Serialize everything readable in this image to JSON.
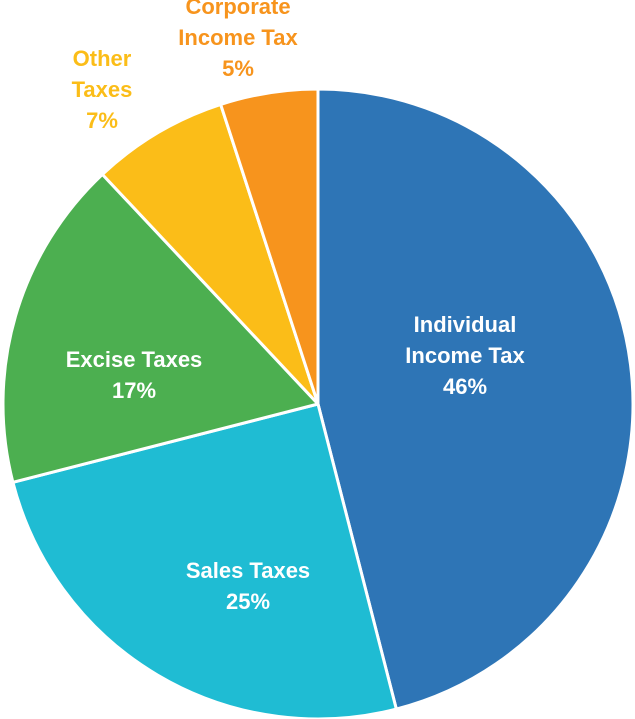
{
  "chart_data": {
    "type": "pie",
    "title": "",
    "slices": [
      {
        "name": "Individual Income Tax",
        "label_lines": [
          "Individual",
          "Income Tax"
        ],
        "value": 46,
        "value_label": "46%",
        "color": "#2e75b6",
        "label_color": "#ffffff"
      },
      {
        "name": "Sales Taxes",
        "label_lines": [
          "Sales Taxes"
        ],
        "value": 25,
        "value_label": "25%",
        "color": "#1fbcd3",
        "label_color": "#ffffff"
      },
      {
        "name": "Excise Taxes",
        "label_lines": [
          "Excise Taxes"
        ],
        "value": 17,
        "value_label": "17%",
        "color": "#4caf50",
        "label_color": "#ffffff"
      },
      {
        "name": "Other Taxes",
        "label_lines": [
          "Other",
          "Taxes"
        ],
        "value": 7,
        "value_label": "7%",
        "color": "#fbbd18",
        "label_color": "#fbbd18"
      },
      {
        "name": "Corporate Income Tax",
        "label_lines": [
          "Corporate",
          "Income Tax"
        ],
        "value": 5,
        "value_label": "5%",
        "color": "#f7941d",
        "label_color": "#f7941d"
      }
    ],
    "legend": "none"
  }
}
